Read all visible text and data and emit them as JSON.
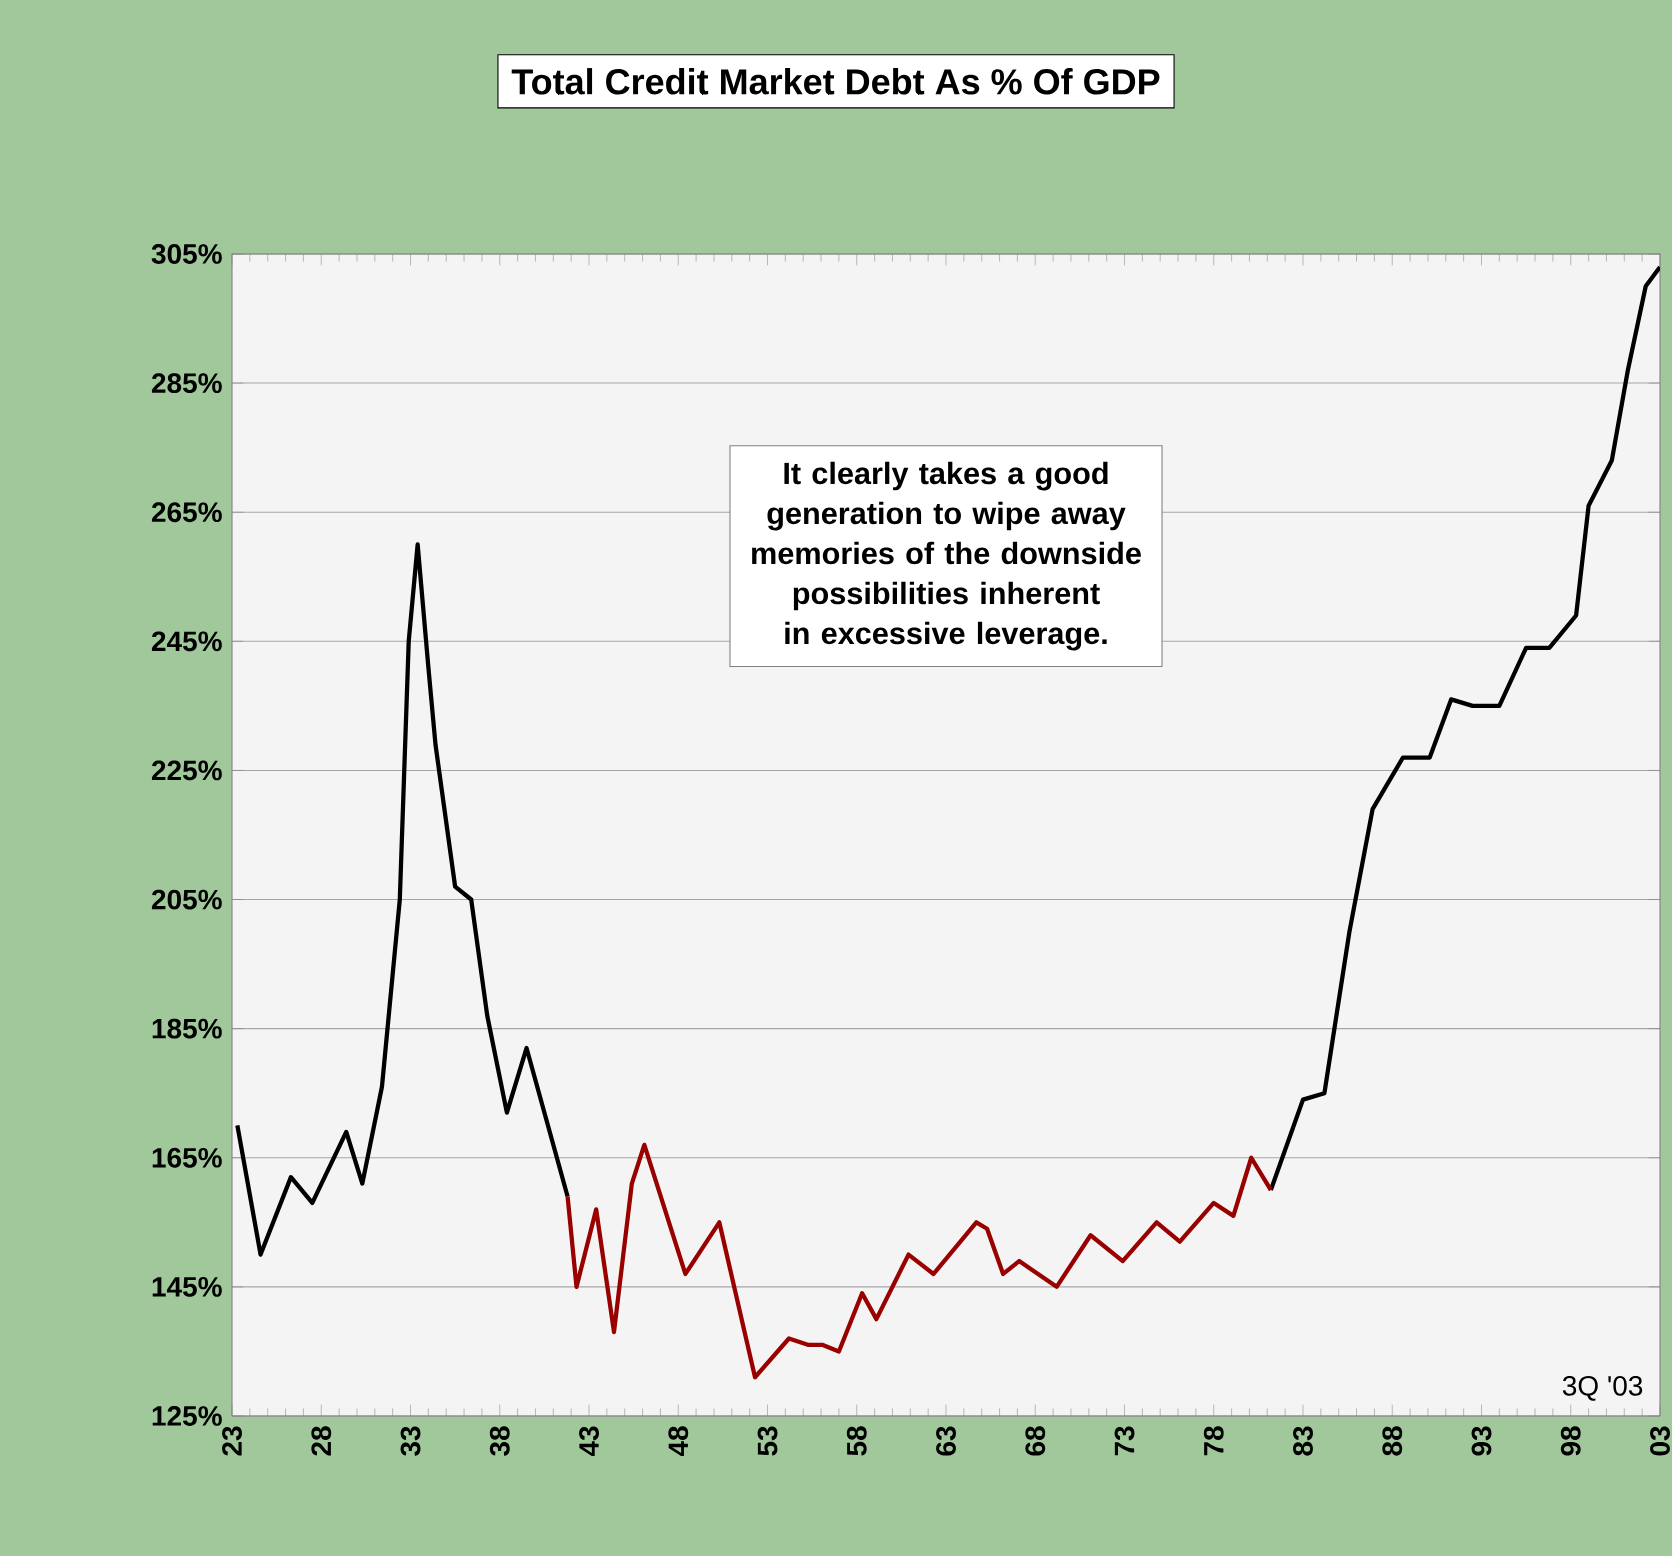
{
  "chart_data": {
    "type": "line",
    "title": "Total Credit Market Debt As % Of GDP",
    "annotations": [
      "It clearly takes a good generation to wipe away memories of the downside possibilities inherent in excessive leverage.",
      "3Q '03"
    ],
    "xlim": [
      1923,
      2003
    ],
    "xticks": [
      {
        "value": 1923,
        "label": "23"
      },
      {
        "value": 1928,
        "label": "28"
      },
      {
        "value": 1933,
        "label": "33"
      },
      {
        "value": 1938,
        "label": "38"
      },
      {
        "value": 1943,
        "label": "43"
      },
      {
        "value": 1948,
        "label": "48"
      },
      {
        "value": 1953,
        "label": "53"
      },
      {
        "value": 1958,
        "label": "58"
      },
      {
        "value": 1963,
        "label": "63"
      },
      {
        "value": 1968,
        "label": "68"
      },
      {
        "value": 1973,
        "label": "73"
      },
      {
        "value": 1978,
        "label": "78"
      },
      {
        "value": 1983,
        "label": "83"
      },
      {
        "value": 1988,
        "label": "88"
      },
      {
        "value": 1993,
        "label": "93"
      },
      {
        "value": 1998,
        "label": "98"
      },
      {
        "value": 2003,
        "label": "03"
      }
    ],
    "ylim": [
      125,
      305
    ],
    "yticks": [
      {
        "value": 125,
        "label": "125%"
      },
      {
        "value": 145,
        "label": "145%"
      },
      {
        "value": 165,
        "label": "165%"
      },
      {
        "value": 185,
        "label": "185%"
      },
      {
        "value": 205,
        "label": "205%"
      },
      {
        "value": 225,
        "label": "225%"
      },
      {
        "value": 245,
        "label": "245%"
      },
      {
        "value": 265,
        "label": "265%"
      },
      {
        "value": 285,
        "label": "285%"
      },
      {
        "value": 305,
        "label": "305%"
      }
    ],
    "grid": "y",
    "line_style": "solid",
    "marker": "none",
    "series": [
      {
        "color": "#000000",
        "x": [
          1923.3,
          1924.6,
          1926.3,
          1927.5,
          1929.4,
          1930.3,
          1931.4,
          1932.4,
          1932.9,
          1933.4,
          1934,
          1934.4,
          1935.5,
          1936.4,
          1937.3,
          1938.4,
          1939.5,
          1940.6,
          1941.8,
          1960,
          1981.2,
          1983,
          1984.2,
          1985.6,
          1986.9,
          1988.6,
          1990.1,
          1991.3,
          1992.5,
          1994,
          1995.5,
          1996.8,
          1998.3,
          1999,
          2000.3,
          2001.2,
          2002.2,
          2003
        ],
        "values": [
          170,
          150,
          162,
          158,
          169,
          161,
          176,
          205,
          245,
          260,
          241,
          229,
          207,
          205,
          187,
          172,
          182,
          171,
          159,
          null,
          160,
          174,
          175,
          200,
          219,
          227,
          227,
          236,
          235,
          235,
          244,
          244,
          249,
          266,
          273,
          287,
          300,
          303
        ]
      },
      {
        "color": "#990000",
        "x": [
          1941.8,
          1942.3,
          1943.4,
          1944.4,
          1945.4,
          1946.1,
          1948.4,
          1950.3,
          1952.3,
          1954.2,
          1955.3,
          1956.1,
          1957,
          1958.3,
          1959.1,
          1960.9,
          1962.3,
          1964.7,
          1965.3,
          1966.2,
          1967.1,
          1969.2,
          1971.1,
          1972.9,
          1974.8,
          1976.1,
          1978,
          1979.1,
          1980.1,
          1981.2
        ],
        "values": [
          159,
          145,
          157,
          138,
          161,
          167,
          147,
          155,
          131,
          137,
          136,
          136,
          135,
          144,
          140,
          150,
          147,
          155,
          154,
          147,
          149,
          145,
          153,
          149,
          155,
          152,
          158,
          156,
          165,
          160
        ]
      }
    ]
  }
}
